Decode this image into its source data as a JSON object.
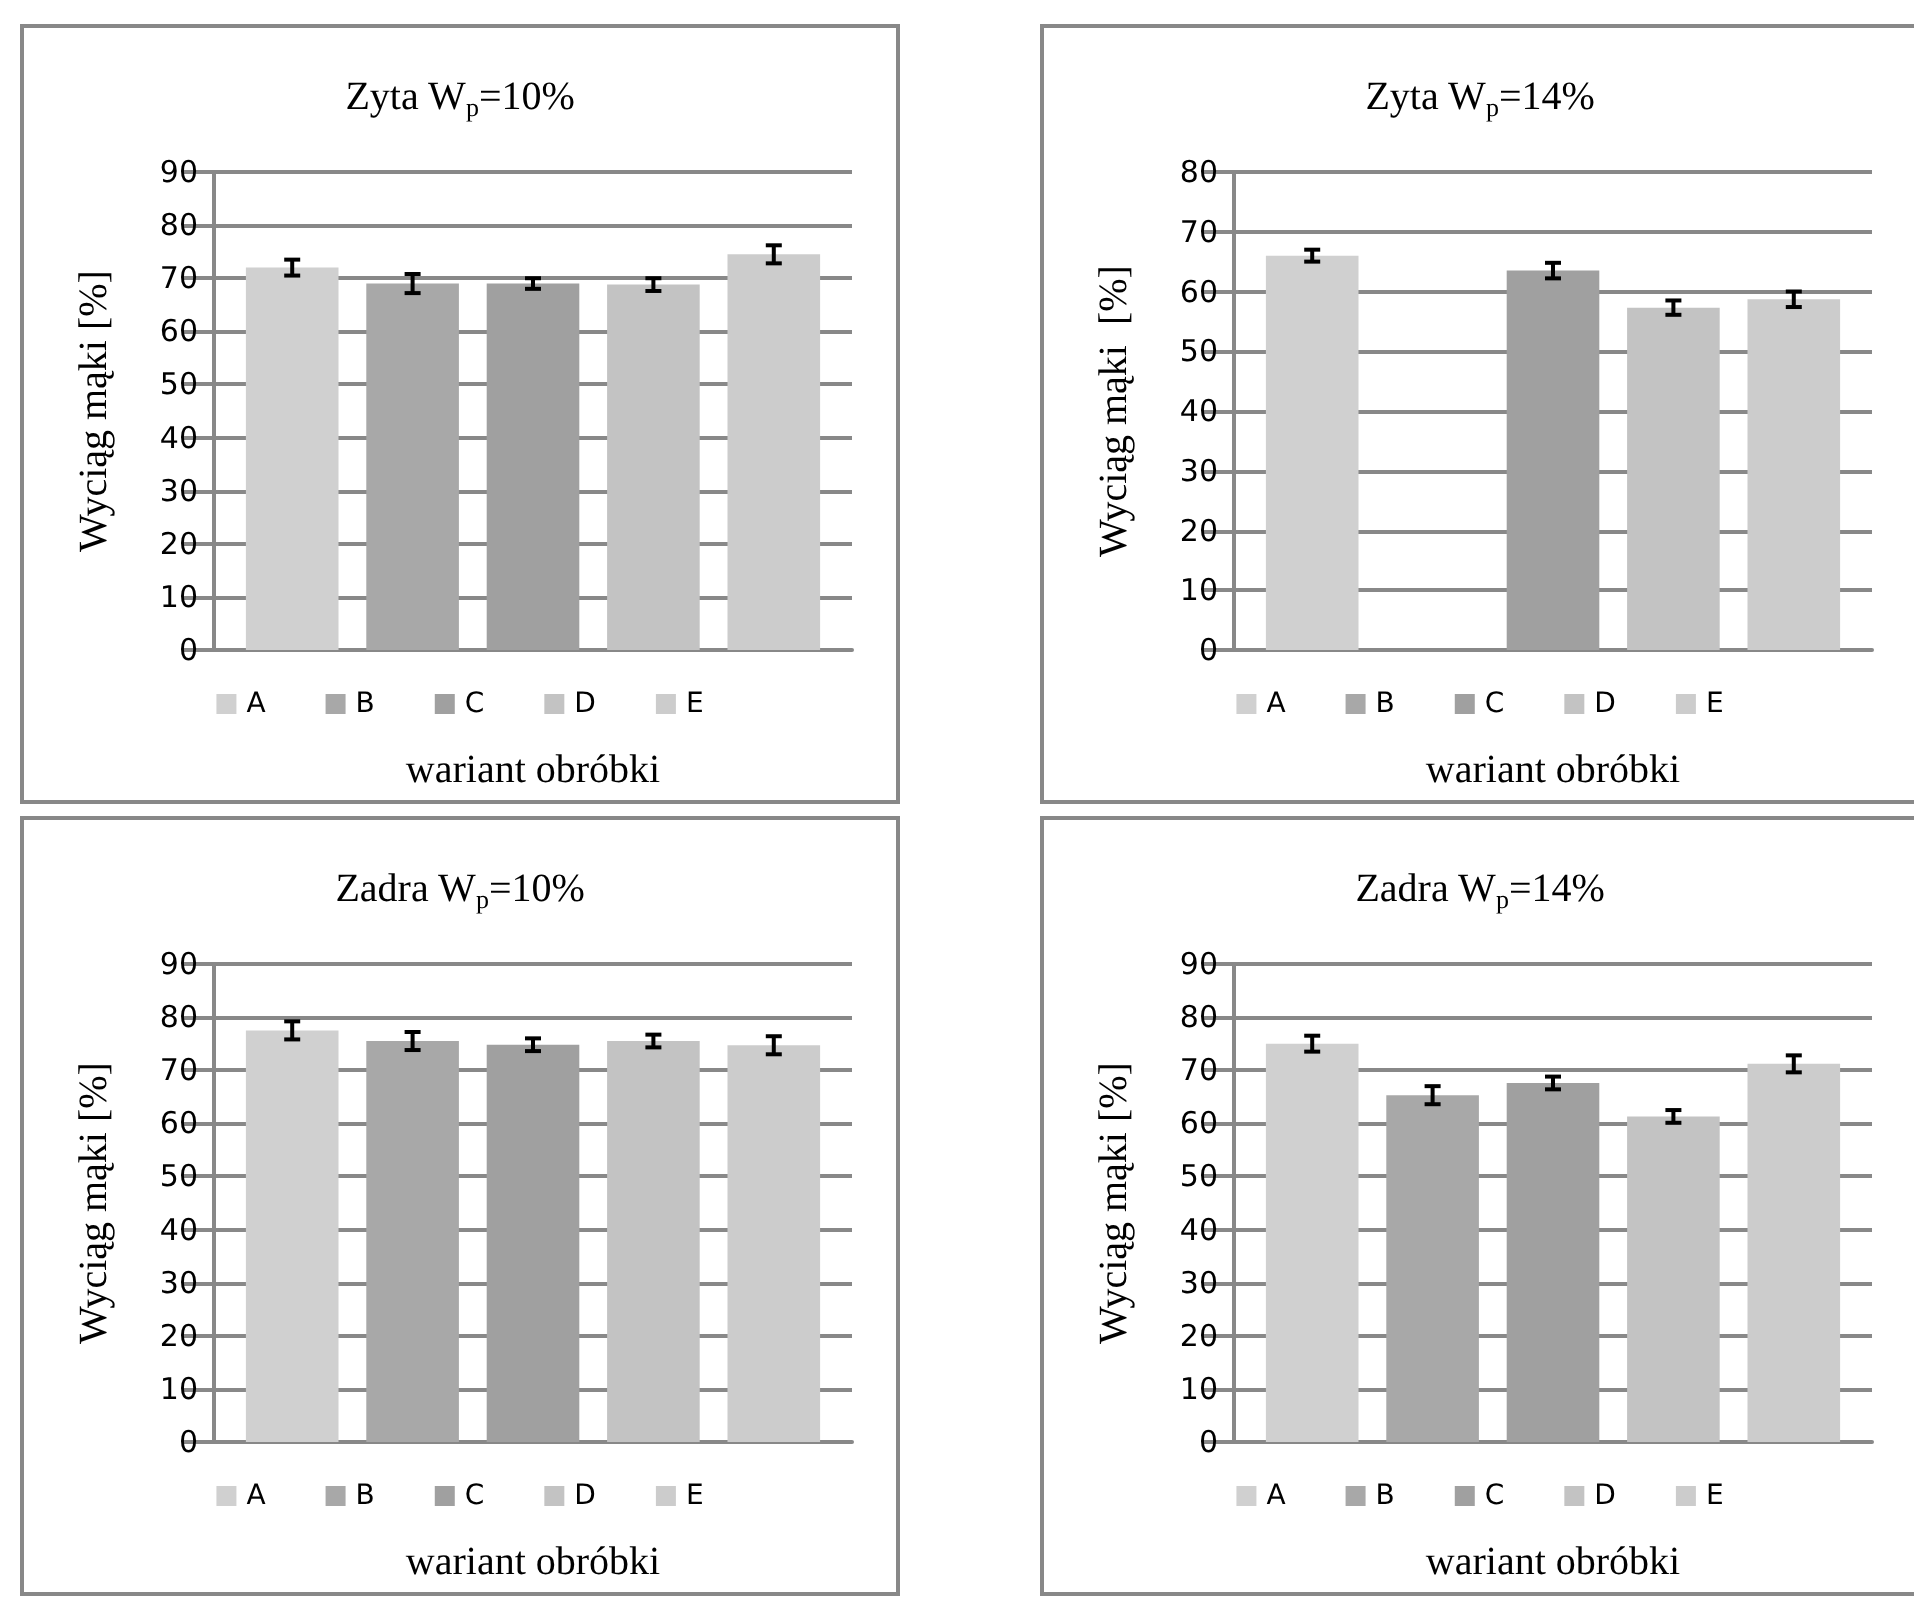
{
  "chart_data": [
    {
      "type": "bar",
      "title": "Zyta W$_{p}$=10%",
      "xlabel": "wariant obróbki",
      "ylabel": "Wyciąg mąki [%]",
      "categories": [
        null
      ],
      "ylim": [
        0,
        90
      ],
      "yticks": [
        0,
        10,
        20,
        30,
        40,
        50,
        60,
        70,
        80,
        90
      ],
      "grid": "y",
      "legend": "bottom",
      "series": [
        {
          "name": "A",
          "color": "#d0d0d0",
          "values": [
            72
          ],
          "errors": [
            1.5
          ]
        },
        {
          "name": "B",
          "color": "#a8a8a8",
          "values": [
            69
          ],
          "errors": [
            1.8
          ]
        },
        {
          "name": "C",
          "color": "#a0a0a0",
          "values": [
            69
          ],
          "errors": [
            1
          ]
        },
        {
          "name": "D",
          "color": "#c3c3c3",
          "values": [
            68.8
          ],
          "errors": [
            1.2
          ]
        },
        {
          "name": "E",
          "color": "#cccccc",
          "values": [
            74.5
          ],
          "errors": [
            1.7
          ]
        }
      ]
    },
    {
      "type": "bar",
      "title": "Zyta W$_{p}$=14%",
      "xlabel": "wariant obróbki",
      "ylabel": "Wyciąg mąki  [%]",
      "categories": [
        null
      ],
      "ylim": [
        0,
        80
      ],
      "yticks": [
        0,
        10,
        20,
        30,
        40,
        50,
        60,
        70,
        80
      ],
      "grid": "y",
      "legend": "bottom",
      "series": [
        {
          "name": "A",
          "color": "#d0d0d0",
          "values": [
            66
          ],
          "errors": [
            1
          ]
        },
        {
          "name": "B",
          "color": "#a8a8a8",
          "values": [
            null
          ],
          "errors": [
            null
          ]
        },
        {
          "name": "C",
          "color": "#a0a0a0",
          "values": [
            63.5
          ],
          "errors": [
            1.3
          ]
        },
        {
          "name": "D",
          "color": "#c3c3c3",
          "values": [
            57.3
          ],
          "errors": [
            1.2
          ]
        },
        {
          "name": "E",
          "color": "#cccccc",
          "values": [
            58.7
          ],
          "errors": [
            1.3
          ]
        }
      ]
    },
    {
      "type": "bar",
      "title": "Zadra W$_{p}$=10%",
      "xlabel": "wariant obróbki",
      "ylabel": "Wyciąg mąki [%]",
      "categories": [
        null
      ],
      "ylim": [
        0,
        90
      ],
      "yticks": [
        0,
        10,
        20,
        30,
        40,
        50,
        60,
        70,
        80,
        90
      ],
      "grid": "y",
      "legend": "bottom",
      "series": [
        {
          "name": "A",
          "color": "#d0d0d0",
          "values": [
            77.5
          ],
          "errors": [
            1.7
          ]
        },
        {
          "name": "B",
          "color": "#a8a8a8",
          "values": [
            75.5
          ],
          "errors": [
            1.7
          ]
        },
        {
          "name": "C",
          "color": "#a0a0a0",
          "values": [
            74.8
          ],
          "errors": [
            1.2
          ]
        },
        {
          "name": "D",
          "color": "#c3c3c3",
          "values": [
            75.5
          ],
          "errors": [
            1.2
          ]
        },
        {
          "name": "E",
          "color": "#cccccc",
          "values": [
            74.7
          ],
          "errors": [
            1.7
          ]
        }
      ]
    },
    {
      "type": "bar",
      "title": "Zadra W$_{p}$=14%",
      "xlabel": "wariant obróbki",
      "ylabel": "Wyciąg mąki [%]",
      "categories": [
        null
      ],
      "ylim": [
        0,
        90
      ],
      "yticks": [
        0,
        10,
        20,
        30,
        40,
        50,
        60,
        70,
        80,
        90
      ],
      "grid": "y",
      "legend": "bottom",
      "series": [
        {
          "name": "A",
          "color": "#d0d0d0",
          "values": [
            75
          ],
          "errors": [
            1.5
          ]
        },
        {
          "name": "B",
          "color": "#a8a8a8",
          "values": [
            65.3
          ],
          "errors": [
            1.7
          ]
        },
        {
          "name": "C",
          "color": "#a0a0a0",
          "values": [
            67.6
          ],
          "errors": [
            1.2
          ]
        },
        {
          "name": "D",
          "color": "#c3c3c3",
          "values": [
            61.3
          ],
          "errors": [
            1.2
          ]
        },
        {
          "name": "E",
          "color": "#cccccc",
          "values": [
            71.2
          ],
          "errors": [
            1.6
          ]
        }
      ]
    }
  ]
}
